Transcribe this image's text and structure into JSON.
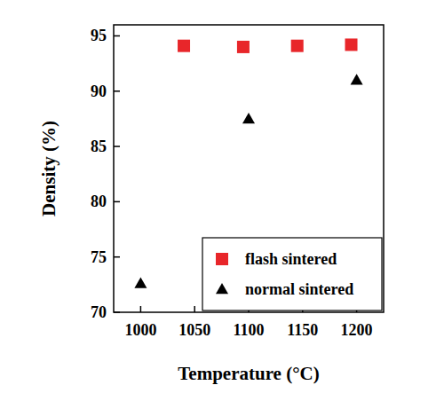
{
  "chart_data": {
    "type": "scatter",
    "x_label": "Temperature (°C)",
    "y_label": "Density (%)",
    "xlim": [
      975,
      1225
    ],
    "xticks": [
      1000,
      1050,
      1100,
      1150,
      1200
    ],
    "ylim": [
      70,
      96
    ],
    "yticks": [
      70,
      75,
      80,
      85,
      90,
      95
    ],
    "grid": false,
    "legend": "lower right",
    "series": [
      {
        "name": "flash sintered",
        "color": "#e8262a",
        "marker": "square",
        "x": [
          1040,
          1095,
          1145,
          1195
        ],
        "values": [
          94.1,
          94.0,
          94.1,
          94.2
        ]
      },
      {
        "name": "normal sintered",
        "color": "#000000",
        "marker": "triangle",
        "x": [
          1000,
          1100,
          1200
        ],
        "values": [
          72.6,
          87.5,
          91.0
        ]
      }
    ]
  }
}
